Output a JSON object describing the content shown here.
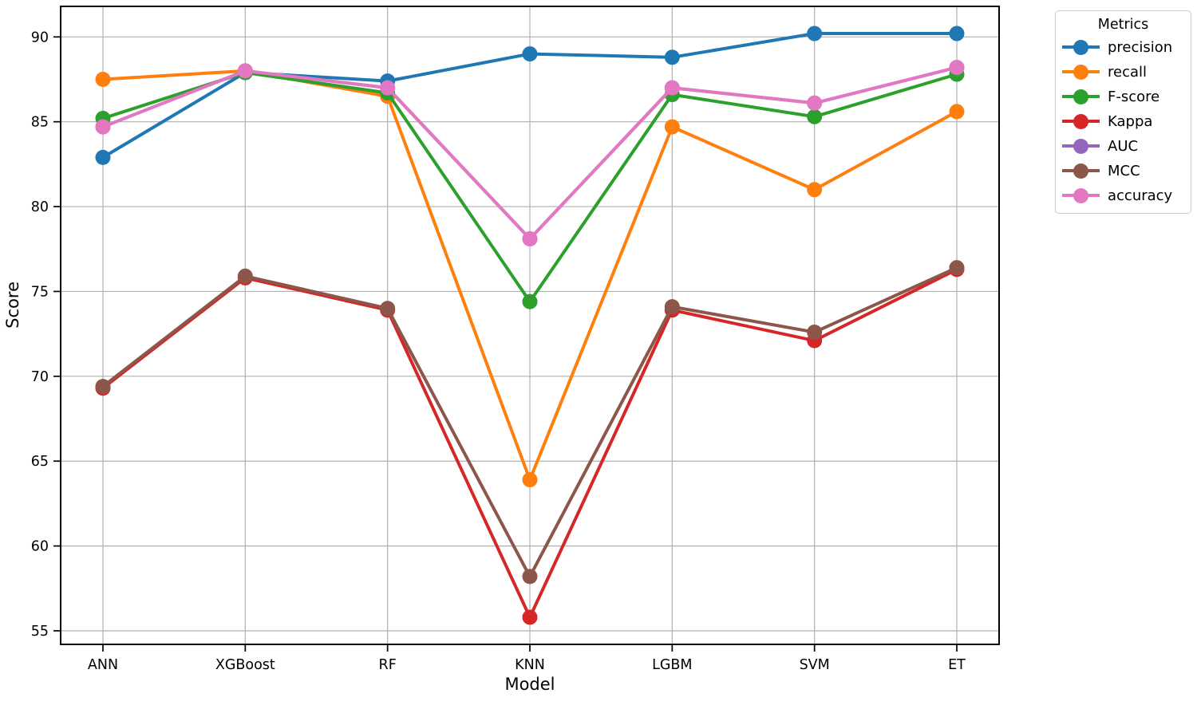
{
  "chart_data": {
    "type": "line",
    "title": "",
    "xlabel": "Model",
    "ylabel": "Score",
    "categories": [
      "ANN",
      "XGBoost",
      "RF",
      "KNN",
      "LGBM",
      "SVM",
      "ET"
    ],
    "yticks": [
      55,
      60,
      65,
      70,
      75,
      80,
      85,
      90
    ],
    "ylim": [
      54.2,
      91.8
    ],
    "grid": true,
    "grid_color": "#b0b0b0",
    "spine_color": "#000000",
    "legend": {
      "title": "Metrics",
      "position": "outside-top-right"
    },
    "series": [
      {
        "name": "precision",
        "color": "#1f77b4",
        "values": [
          82.9,
          87.9,
          87.4,
          89.0,
          88.8,
          90.2,
          90.2
        ]
      },
      {
        "name": "recall",
        "color": "#ff7f0e",
        "values": [
          87.5,
          88.0,
          86.5,
          63.9,
          84.7,
          81.0,
          85.6
        ]
      },
      {
        "name": "F-score",
        "color": "#2ca02c",
        "values": [
          85.2,
          87.9,
          86.7,
          74.4,
          86.6,
          85.3,
          87.8
        ]
      },
      {
        "name": "Kappa",
        "color": "#d62728",
        "values": [
          69.3,
          75.8,
          73.9,
          55.8,
          73.9,
          72.1,
          76.3
        ]
      },
      {
        "name": "AUC",
        "color": "#9467bd",
        "values": [
          84.7,
          88.0,
          87.0,
          78.1,
          87.0,
          86.1,
          88.2
        ]
      },
      {
        "name": "MCC",
        "color": "#8c564b",
        "values": [
          69.4,
          75.9,
          74.0,
          58.2,
          74.1,
          72.6,
          76.4
        ]
      },
      {
        "name": "accuracy",
        "color": "#e377c2",
        "values": [
          84.7,
          88.0,
          87.0,
          78.1,
          87.0,
          86.1,
          88.2
        ]
      }
    ]
  }
}
